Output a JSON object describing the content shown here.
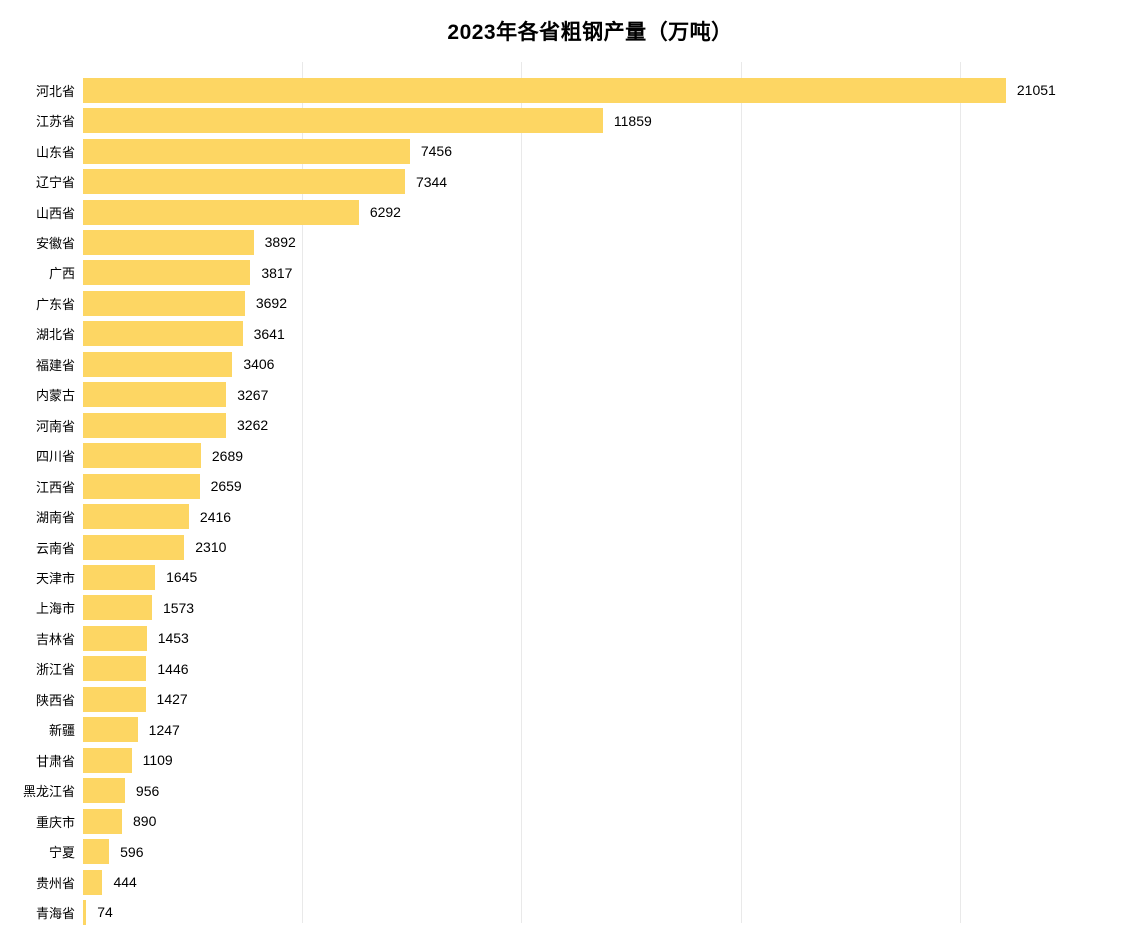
{
  "chart_data": {
    "type": "bar",
    "orientation": "horizontal",
    "title": "2023年各省粗钢产量（万吨）",
    "categories": [
      "河北省",
      "江苏省",
      "山东省",
      "辽宁省",
      "山西省",
      "安徽省",
      "广西",
      "广东省",
      "湖北省",
      "福建省",
      "内蒙古",
      "河南省",
      "四川省",
      "江西省",
      "湖南省",
      "云南省",
      "天津市",
      "上海市",
      "吉林省",
      "浙江省",
      "陕西省",
      "新疆",
      "甘肃省",
      "黑龙江省",
      "重庆市",
      "宁夏",
      "贵州省",
      "青海省"
    ],
    "values": [
      21051,
      11859,
      7456,
      7344,
      6292,
      3892,
      3817,
      3692,
      3641,
      3406,
      3267,
      3262,
      2689,
      2659,
      2416,
      2310,
      1645,
      1573,
      1453,
      1446,
      1427,
      1247,
      1109,
      956,
      890,
      596,
      444,
      74
    ],
    "xlabel": "",
    "ylabel": "",
    "xlim": [
      0,
      23150
    ],
    "grid_ticks": [
      5000,
      10000,
      15000,
      20000
    ],
    "grid": true,
    "legend": false,
    "value_labels": true,
    "bar_color": "#FDD663",
    "gridline_color": "#E9E9E9",
    "text_color": "#000000"
  }
}
